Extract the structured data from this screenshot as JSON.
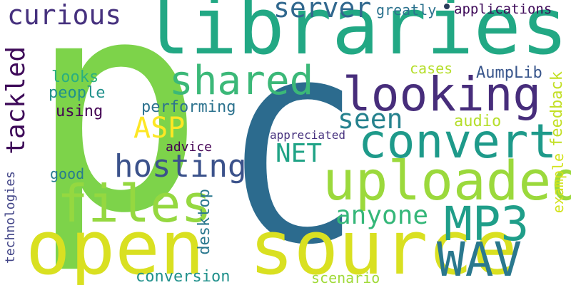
{
  "colors": {
    "background": "#ffffff",
    "yellow": "#d9e021",
    "lime": "#7dd34a",
    "green": "#3ab77a",
    "teal": "#1f9a8a",
    "cyan": "#21808d",
    "blue": "#2e6790",
    "indigo": "#3f4a8a",
    "purple": "#472d7b",
    "dark_purple": "#440154"
  },
  "words": [
    {
      "text": "p",
      "color": "#7dd34a"
    },
    {
      "text": "libraries",
      "color": "#22a884"
    },
    {
      "text": "C",
      "color": "#2c6b8e"
    },
    {
      "text": "open source",
      "color": "#d9e021"
    },
    {
      "text": "uploaded",
      "color": "#9bd93c"
    },
    {
      "text": "convert",
      "color": "#1e9a8a"
    },
    {
      "text": "looking",
      "color": "#472d7b"
    },
    {
      "text": "files",
      "color": "#95d840"
    },
    {
      "text": "shared",
      "color": "#3bb878"
    },
    {
      "text": "MP3",
      "color": "#1f9e89"
    },
    {
      "text": "WAV",
      "color": "#2a788e"
    },
    {
      "text": "tackled",
      "color": "#3e0a59"
    },
    {
      "text": "curious",
      "color": "#46317e"
    },
    {
      "text": "server",
      "color": "#31688e"
    },
    {
      "text": "hosting",
      "color": "#3b528b"
    },
    {
      "text": "seen",
      "color": "#26828e"
    },
    {
      "text": "ASP",
      "color": "#fde725"
    },
    {
      "text": "NET",
      "color": "#20a386"
    },
    {
      "text": "anyone",
      "color": "#35b779"
    },
    {
      "text": "desktop",
      "color": "#2a788e"
    },
    {
      "text": "greatly",
      "color": "#2c728e"
    },
    {
      "text": "applications",
      "color": "#3e0a59"
    },
    {
      "text": "looks",
      "color": "#29af7f"
    },
    {
      "text": "people",
      "color": "#21918c"
    },
    {
      "text": "using",
      "color": "#440154"
    },
    {
      "text": "cases",
      "color": "#b5de2b"
    },
    {
      "text": "AumpLib",
      "color": "#39568c"
    },
    {
      "text": "performing",
      "color": "#2c728e"
    },
    {
      "text": "appreciated",
      "color": "#46317e"
    },
    {
      "text": "audio",
      "color": "#b5de2b"
    },
    {
      "text": "advice",
      "color": "#440154"
    },
    {
      "text": "good",
      "color": "#287c8e"
    },
    {
      "text": "example",
      "color": "#d2e21b"
    },
    {
      "text": "feedback",
      "color": "#c2df23"
    },
    {
      "text": "technologies",
      "color": "#414487"
    },
    {
      "text": "conversion",
      "color": "#21918c"
    },
    {
      "text": "scenario",
      "color": "#a0da39"
    }
  ]
}
